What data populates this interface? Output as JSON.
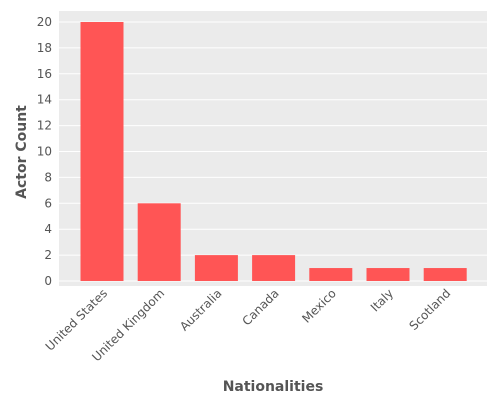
{
  "chart_data": {
    "type": "bar",
    "title": "",
    "xlabel": "Nationalities",
    "ylabel": "Actor Count",
    "categories": [
      "United States",
      "United Kingdom",
      "Australia",
      "Canada",
      "Mexico",
      "Italy",
      "Scotland"
    ],
    "values": [
      20,
      6,
      2,
      2,
      1,
      1,
      1
    ],
    "ylim": [
      0,
      21
    ],
    "yticks": [
      0,
      2,
      4,
      6,
      8,
      10,
      12,
      14,
      16,
      18,
      20
    ],
    "grid": true,
    "colors": {
      "bar": "#ff5555",
      "plot_background": "#ebebeb",
      "grid": "#ffffff",
      "text": "#555555"
    }
  }
}
